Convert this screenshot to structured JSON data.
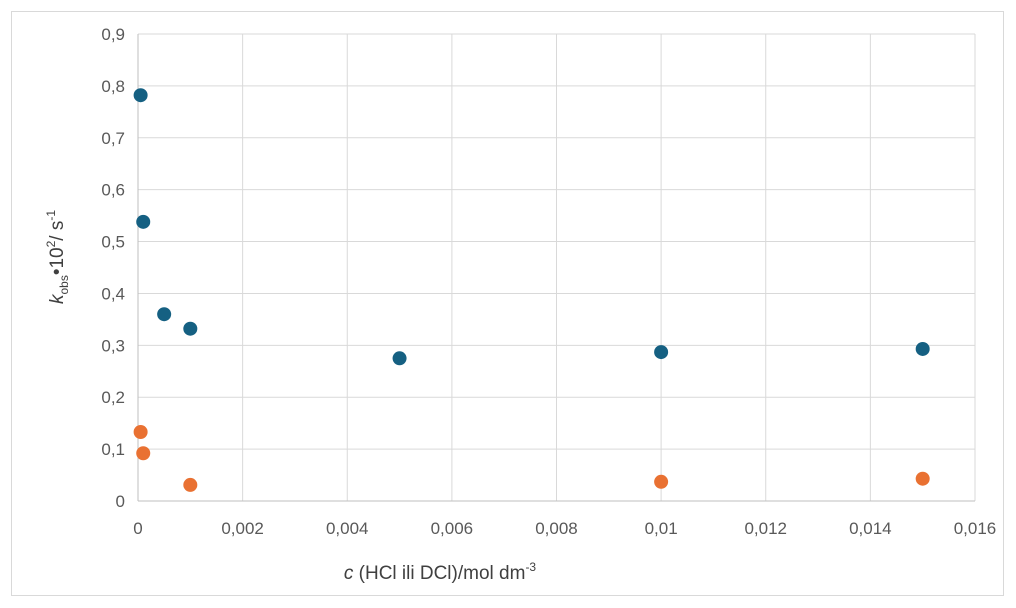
{
  "chart_data": {
    "type": "scatter",
    "xlabel": {
      "var": "c",
      "text": " (HCl ili DCl)/mol dm",
      "sup": "-3"
    },
    "ylabel": {
      "var": "k",
      "sub": "obs",
      "mid": "•10",
      "sup1": "2",
      "mid2": "/ s",
      "sup2": "-1"
    },
    "xlim": [
      0,
      0.016
    ],
    "ylim": [
      0,
      0.9
    ],
    "x_ticks": [
      "0",
      "0,002",
      "0,004",
      "0,006",
      "0,008",
      "0,01",
      "0,012",
      "0,014",
      "0,016"
    ],
    "y_ticks": [
      "0",
      "0,1",
      "0,2",
      "0,3",
      "0,4",
      "0,5",
      "0,6",
      "0,7",
      "0,8",
      "0,9"
    ],
    "x_tick_values": [
      0,
      0.002,
      0.004,
      0.006,
      0.008,
      0.01,
      0.012,
      0.014,
      0.016
    ],
    "y_tick_values": [
      0,
      0.1,
      0.2,
      0.3,
      0.4,
      0.5,
      0.6,
      0.7,
      0.8,
      0.9
    ],
    "grid": true,
    "legend": "none",
    "series": [
      {
        "color": "#156082",
        "points": [
          {
            "x": 5e-05,
            "y": 0.782
          },
          {
            "x": 0.0001,
            "y": 0.538
          },
          {
            "x": 0.0005,
            "y": 0.36
          },
          {
            "x": 0.001,
            "y": 0.332
          },
          {
            "x": 0.005,
            "y": 0.275
          },
          {
            "x": 0.01,
            "y": 0.287
          },
          {
            "x": 0.015,
            "y": 0.293
          }
        ]
      },
      {
        "color": "#E97132",
        "points": [
          {
            "x": 5e-05,
            "y": 0.133
          },
          {
            "x": 0.0001,
            "y": 0.092
          },
          {
            "x": 0.001,
            "y": 0.031
          },
          {
            "x": 0.01,
            "y": 0.037
          },
          {
            "x": 0.015,
            "y": 0.043
          }
        ]
      }
    ]
  }
}
